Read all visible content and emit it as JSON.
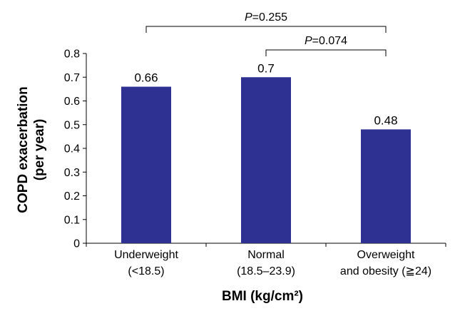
{
  "chart_data": {
    "type": "bar",
    "categories": [
      [
        "Underweight",
        "(<18.5)"
      ],
      [
        "Normal",
        "(18.5–23.9)"
      ],
      [
        "Overweight",
        "and obesity (≧24)"
      ]
    ],
    "values": [
      0.66,
      0.7,
      0.48
    ],
    "value_labels": [
      "0.66",
      "0.7",
      "0.48"
    ],
    "xlabel": "BMI (kg/cm²)",
    "ylabel": [
      "COPD exacerbation",
      "(per year)"
    ],
    "ylim": [
      0,
      0.8
    ],
    "yticks": [
      "0",
      "0.1",
      "0.2",
      "0.3",
      "0.4",
      "0.5",
      "0.6",
      "0.7",
      "0.8"
    ],
    "grid": false,
    "bar_color": "#2e3192",
    "comparisons": [
      {
        "from": 0,
        "to": 2,
        "p_symbol": "P",
        "p_value": "=0.255"
      },
      {
        "from": 1,
        "to": 2,
        "p_symbol": "P",
        "p_value": "=0.074"
      }
    ]
  }
}
